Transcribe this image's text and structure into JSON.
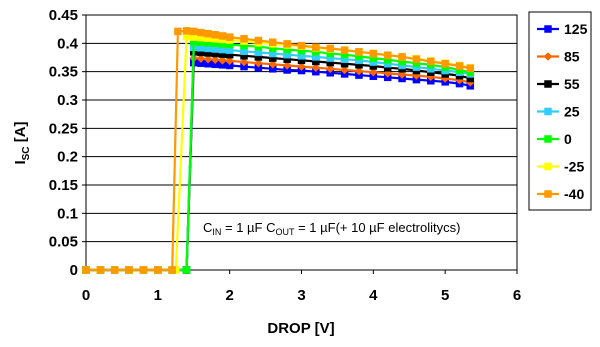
{
  "chart_data": {
    "type": "line",
    "title": "",
    "xlabel": "DROP [V]",
    "ylabel": {
      "main": "I",
      "sub": "SC",
      "rest": " [A]"
    },
    "xlim": [
      0,
      6
    ],
    "ylim": [
      0,
      0.45
    ],
    "x_ticks": [
      "0",
      "1",
      "2",
      "3",
      "4",
      "5",
      "6"
    ],
    "y_ticks": [
      "0",
      "0.05",
      "0.1",
      "0.15",
      "0.2",
      "0.25",
      "0.3",
      "0.35",
      "0.4",
      "0.45"
    ],
    "grid": "horizontal",
    "legend_position": "right",
    "annotation": {
      "parts": [
        {
          "t": "C",
          "sub": false
        },
        {
          "t": "IN",
          "sub": true
        },
        {
          "t": " = 1 µF C",
          "sub": false
        },
        {
          "t": "OUT",
          "sub": true
        },
        {
          "t": " = 1 µF(+ 10 µF electrolitycs)",
          "sub": false
        }
      ]
    },
    "series": [
      {
        "name": "125",
        "color": "#0000ff",
        "marker": "square",
        "x": [
          0,
          0.2,
          0.4,
          0.6,
          0.8,
          1.0,
          1.2,
          1.4,
          1.5,
          1.6,
          1.7,
          1.8,
          1.9,
          2.0,
          2.2,
          2.4,
          2.6,
          2.8,
          3.0,
          3.2,
          3.4,
          3.6,
          3.8,
          4.0,
          4.2,
          4.4,
          4.6,
          4.8,
          5.0,
          5.2,
          5.35
        ],
        "y": [
          0,
          0,
          0,
          0,
          0,
          0,
          0,
          0,
          0.366,
          0.365,
          0.364,
          0.363,
          0.362,
          0.361,
          0.359,
          0.357,
          0.355,
          0.353,
          0.352,
          0.35,
          0.348,
          0.346,
          0.344,
          0.342,
          0.34,
          0.338,
          0.336,
          0.334,
          0.332,
          0.329,
          0.325
        ]
      },
      {
        "name": "85",
        "color": "#ff6600",
        "marker": "diamond",
        "x": [
          0,
          0.2,
          0.4,
          0.6,
          0.8,
          1.0,
          1.2,
          1.4,
          1.5,
          1.6,
          1.7,
          1.8,
          1.9,
          2.0,
          2.2,
          2.4,
          2.6,
          2.8,
          3.0,
          3.2,
          3.4,
          3.6,
          3.8,
          4.0,
          4.2,
          4.4,
          4.6,
          4.8,
          5.0,
          5.2,
          5.35
        ],
        "y": [
          0,
          0,
          0,
          0,
          0,
          0,
          0,
          0,
          0.374,
          0.373,
          0.372,
          0.371,
          0.37,
          0.369,
          0.367,
          0.365,
          0.363,
          0.361,
          0.359,
          0.357,
          0.355,
          0.353,
          0.351,
          0.349,
          0.347,
          0.345,
          0.343,
          0.341,
          0.338,
          0.335,
          0.331
        ]
      },
      {
        "name": "55",
        "color": "#000000",
        "marker": "square",
        "x": [
          0,
          0.2,
          0.4,
          0.6,
          0.8,
          1.0,
          1.2,
          1.4,
          1.5,
          1.6,
          1.7,
          1.8,
          1.9,
          2.0,
          2.2,
          2.4,
          2.6,
          2.8,
          3.0,
          3.2,
          3.4,
          3.6,
          3.8,
          4.0,
          4.2,
          4.4,
          4.6,
          4.8,
          5.0,
          5.2,
          5.35
        ],
        "y": [
          0,
          0,
          0,
          0,
          0,
          0,
          0,
          0,
          0.385,
          0.384,
          0.383,
          0.382,
          0.381,
          0.38,
          0.378,
          0.376,
          0.374,
          0.372,
          0.37,
          0.368,
          0.366,
          0.364,
          0.362,
          0.36,
          0.357,
          0.355,
          0.352,
          0.349,
          0.346,
          0.343,
          0.338
        ]
      },
      {
        "name": "25",
        "color": "#33ccff",
        "marker": "square",
        "x": [
          0,
          0.2,
          0.4,
          0.6,
          0.8,
          1.0,
          1.2,
          1.4,
          1.5,
          1.6,
          1.7,
          1.8,
          1.9,
          2.0,
          2.2,
          2.4,
          2.6,
          2.8,
          3.0,
          3.2,
          3.4,
          3.6,
          3.8,
          4.0,
          4.2,
          4.4,
          4.6,
          4.8,
          5.0,
          5.2,
          5.35
        ],
        "y": [
          0,
          0,
          0,
          0,
          0,
          0,
          0,
          0,
          0.393,
          0.392,
          0.391,
          0.39,
          0.389,
          0.388,
          0.386,
          0.384,
          0.382,
          0.38,
          0.378,
          0.376,
          0.374,
          0.372,
          0.37,
          0.367,
          0.364,
          0.361,
          0.358,
          0.355,
          0.352,
          0.349,
          0.346
        ]
      },
      {
        "name": "0",
        "color": "#00ff00",
        "marker": "square",
        "x": [
          0,
          0.2,
          0.4,
          0.6,
          0.8,
          1.0,
          1.2,
          1.4,
          1.5,
          1.6,
          1.7,
          1.8,
          1.9,
          2.0,
          2.2,
          2.4,
          2.6,
          2.8,
          3.0,
          3.2,
          3.4,
          3.6,
          3.8,
          4.0,
          4.2,
          4.4,
          4.6,
          4.8,
          5.0,
          5.2,
          5.35
        ],
        "y": [
          0,
          0,
          0,
          0,
          0,
          0,
          0,
          0,
          0.403,
          0.402,
          0.401,
          0.4,
          0.399,
          0.398,
          0.396,
          0.394,
          0.391,
          0.389,
          0.387,
          0.385,
          0.382,
          0.38,
          0.377,
          0.374,
          0.371,
          0.368,
          0.365,
          0.362,
          0.358,
          0.353,
          0.349
        ]
      },
      {
        "name": "-25",
        "color": "#ffff00",
        "marker": "square",
        "x": [
          0,
          0.2,
          0.4,
          0.6,
          0.8,
          1.0,
          1.2,
          1.25,
          1.4,
          1.5,
          1.6,
          1.7,
          1.8,
          1.9,
          2.0,
          2.2,
          2.4,
          2.6,
          2.8,
          3.0,
          3.2,
          3.4,
          3.6,
          3.8,
          4.0,
          4.2,
          4.4,
          4.6,
          4.8,
          5.0,
          5.2,
          5.35
        ],
        "y": [
          0,
          0,
          0,
          0,
          0,
          0,
          0,
          0,
          0.412,
          0.411,
          0.41,
          0.409,
          0.408,
          0.407,
          0.406,
          0.404,
          0.401,
          0.399,
          0.397,
          0.395,
          0.392,
          0.39,
          0.388,
          0.385,
          0.382,
          0.379,
          0.376,
          0.373,
          0.369,
          0.365,
          0.361,
          0.357
        ]
      },
      {
        "name": "-40",
        "color": "#ff9900",
        "marker": "square",
        "x": [
          0,
          0.2,
          0.4,
          0.6,
          0.8,
          1.0,
          1.2,
          1.28,
          1.4,
          1.5,
          1.6,
          1.7,
          1.8,
          1.9,
          2.0,
          2.2,
          2.4,
          2.6,
          2.8,
          3.0,
          3.2,
          3.4,
          3.6,
          3.8,
          4.0,
          4.2,
          4.4,
          4.6,
          4.8,
          5.0,
          5.2,
          5.35
        ],
        "y": [
          0,
          0,
          0,
          0,
          0,
          0,
          0,
          0.421,
          0.422,
          0.421,
          0.419,
          0.417,
          0.415,
          0.413,
          0.411,
          0.408,
          0.405,
          0.402,
          0.399,
          0.396,
          0.393,
          0.391,
          0.388,
          0.385,
          0.382,
          0.379,
          0.376,
          0.372,
          0.368,
          0.364,
          0.36,
          0.356
        ]
      }
    ]
  }
}
